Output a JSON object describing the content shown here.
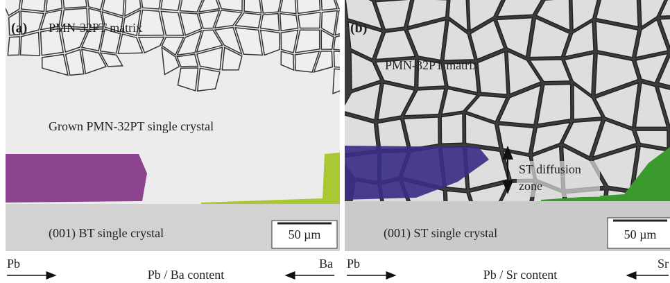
{
  "panels": [
    {
      "label": "(a)",
      "matrix": "PMN-32PT matrix",
      "grown": "Grown PMN-32PT single crystal",
      "substrate": "(001) BT single crystal",
      "scale_bar": "50 µm",
      "axis": {
        "left": "Pb",
        "center": "Pb / Ba content",
        "right": "Ba"
      }
    },
    {
      "label": "(b)",
      "matrix": "PMN-32PT matrix",
      "zone": [
        "ST diffusion",
        "zone"
      ],
      "substrate": "(001) ST single crystal",
      "scale_bar": "50 µm",
      "axis": {
        "left": "Pb",
        "center": "Pb / Sr content",
        "right": "Sr"
      }
    }
  ]
}
